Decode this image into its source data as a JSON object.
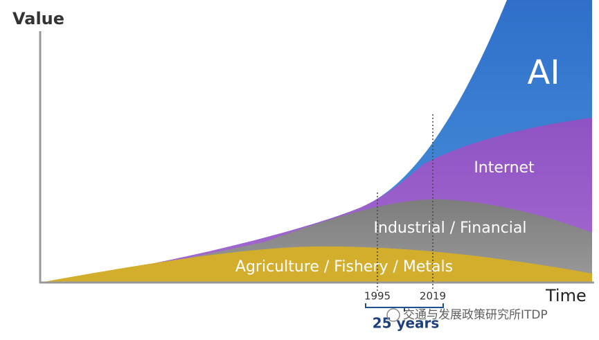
{
  "axes": {
    "y_label": "Value",
    "x_label": "Time"
  },
  "layers": [
    {
      "label": "AI"
    },
    {
      "label": "Internet"
    },
    {
      "label": "Industrial / Financial"
    },
    {
      "label": "Agriculture / Fishery / Metals"
    }
  ],
  "markers": [
    {
      "label": "1995"
    },
    {
      "label": "2019"
    }
  ],
  "span_label": "25 years",
  "watermark": "交通与发展政策研究所ITDP"
}
